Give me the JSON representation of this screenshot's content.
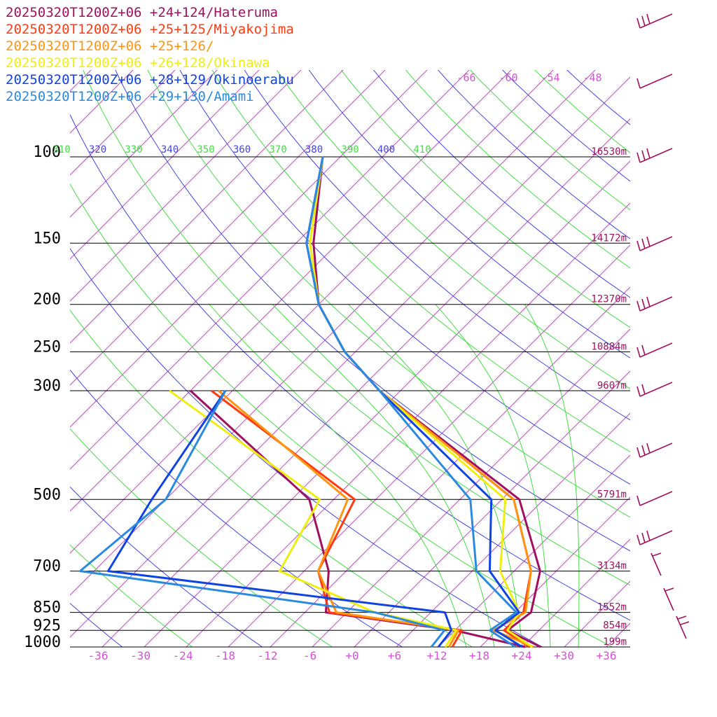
{
  "chart_data": {
    "type": "line",
    "subtype": "skew-t sounding",
    "valid_time": "20250320T1200Z+06",
    "pressure_levels": [
      100,
      150,
      200,
      250,
      300,
      500,
      700,
      850,
      925,
      1000
    ],
    "level_heights": [
      "16530m",
      "14172m",
      "12370m",
      "10884m",
      "9607m",
      "5791m",
      "3134m",
      "1552m",
      "854m",
      "199m"
    ],
    "x_ticks": [
      "-36",
      "-30",
      "-24",
      "-18",
      "-12",
      "-6",
      "+0",
      "+6",
      "+12",
      "+18",
      "+24",
      "+30",
      "+36"
    ],
    "upper_isotherm_labels": [
      "-66",
      "-60",
      "-54",
      "-48"
    ],
    "theta_labels": [
      {
        "text": "310",
        "color": "#44dd44"
      },
      {
        "text": "320",
        "color": "#4444dd"
      },
      {
        "text": "330",
        "color": "#44dd44"
      },
      {
        "text": "340",
        "color": "#4444dd"
      },
      {
        "text": "350",
        "color": "#44dd44"
      },
      {
        "text": "360",
        "color": "#4444dd"
      },
      {
        "text": "370",
        "color": "#44dd44"
      },
      {
        "text": "380",
        "color": "#4444dd"
      },
      {
        "text": "390",
        "color": "#44dd44"
      },
      {
        "text": "400",
        "color": "#4444dd"
      },
      {
        "text": "410",
        "color": "#44dd44"
      }
    ],
    "series": [
      {
        "name": "20250320T1200Z+06 +24+124/Hateruma",
        "color": "#a0105f",
        "temp": [
          [
            1000,
            26.6
          ],
          [
            925,
            19.5
          ],
          [
            850,
            20.3
          ],
          [
            700,
            15.7
          ],
          [
            500,
            2.5
          ],
          [
            300,
            -33.0
          ],
          [
            250,
            -43.5
          ],
          [
            200,
            -54.0
          ],
          [
            150,
            -63.5
          ],
          [
            100,
            -74.5
          ]
        ],
        "dew": [
          [
            1000,
            24.4
          ],
          [
            925,
            12.0
          ],
          [
            850,
            -9.0
          ],
          [
            700,
            -14.5
          ],
          [
            500,
            -27.5
          ],
          [
            300,
            -60.0
          ]
        ]
      },
      {
        "name": "20250320T1200Z+06 +25+125/Miyakojima",
        "color": "#ff3a10",
        "temp": [
          [
            1000,
            25.0
          ],
          [
            925,
            19.0
          ],
          [
            850,
            19.2
          ],
          [
            700,
            14.4
          ],
          [
            500,
            1.7
          ],
          [
            300,
            -33.0
          ],
          [
            250,
            -43.5
          ],
          [
            200,
            -54.0
          ],
          [
            150,
            -64.5
          ],
          [
            100,
            -74.5
          ]
        ],
        "dew": [
          [
            1000,
            14.0
          ],
          [
            925,
            13.0
          ],
          [
            850,
            -8.5
          ],
          [
            700,
            -16.0
          ],
          [
            500,
            -21.0
          ],
          [
            300,
            -57.0
          ]
        ]
      },
      {
        "name": "20250320T1200Z+06 +25+126/",
        "color": "#ff9410",
        "temp": [
          [
            1000,
            25.6
          ],
          [
            925,
            17.5
          ],
          [
            850,
            19.5
          ],
          [
            700,
            14.4
          ],
          [
            500,
            1.7
          ],
          [
            300,
            -33.0
          ],
          [
            250,
            -43.5
          ],
          [
            200,
            -54.0
          ],
          [
            150,
            -64.0
          ],
          [
            100,
            -74.5
          ]
        ],
        "dew": [
          [
            1000,
            13.5
          ],
          [
            925,
            12.5
          ],
          [
            850,
            -7.5
          ],
          [
            700,
            -16.0
          ],
          [
            500,
            -22.0
          ],
          [
            300,
            -56.0
          ]
        ]
      },
      {
        "name": "20250320T1200Z+06 +26+128/Okinawa",
        "color": "#eeee10",
        "temp": [
          [
            1000,
            25.4
          ],
          [
            925,
            19.5
          ],
          [
            850,
            18.6
          ],
          [
            700,
            10.0
          ],
          [
            500,
            0.5
          ],
          [
            300,
            -33.0
          ],
          [
            250,
            -43.5
          ],
          [
            200,
            -54.0
          ],
          [
            150,
            -64.0
          ],
          [
            100,
            -74.5
          ]
        ],
        "dew": [
          [
            1000,
            13.0
          ],
          [
            925,
            12.2
          ],
          [
            850,
            -2.0
          ],
          [
            700,
            -21.5
          ],
          [
            500,
            -26.0
          ],
          [
            300,
            -63.0
          ]
        ]
      },
      {
        "name": "20250320T1200Z+06 +28+129/Okinoerabu",
        "color": "#1044e0",
        "temp": [
          [
            1000,
            24.0
          ],
          [
            925,
            17.8
          ],
          [
            850,
            18.6
          ],
          [
            700,
            8.5
          ],
          [
            500,
            -1.5
          ],
          [
            300,
            -33.0
          ],
          [
            250,
            -43.5
          ],
          [
            200,
            -54.0
          ],
          [
            150,
            -64.5
          ],
          [
            100,
            -74.5
          ]
        ],
        "dew": [
          [
            1000,
            12.0
          ],
          [
            925,
            11.5
          ],
          [
            850,
            8.0
          ],
          [
            700,
            -46.0
          ],
          [
            500,
            -50.0
          ],
          [
            300,
            -55.0
          ]
        ]
      },
      {
        "name": "20250320T1200Z+06 +29+130/Amami",
        "color": "#2a8ae0",
        "temp": [
          [
            1000,
            23.0
          ],
          [
            925,
            17.0
          ],
          [
            850,
            18.2
          ],
          [
            700,
            6.6
          ],
          [
            500,
            -4.5
          ],
          [
            300,
            -33.0
          ],
          [
            250,
            -43.5
          ],
          [
            200,
            -54.0
          ],
          [
            150,
            -64.5
          ],
          [
            100,
            -74.5
          ]
        ],
        "dew": [
          [
            1000,
            11.0
          ],
          [
            925,
            10.5
          ],
          [
            850,
            -2.0
          ],
          [
            700,
            -50.0
          ],
          [
            500,
            -48.0
          ],
          [
            300,
            -55.0
          ]
        ]
      }
    ],
    "wind_barb_color": "#a0105f"
  }
}
